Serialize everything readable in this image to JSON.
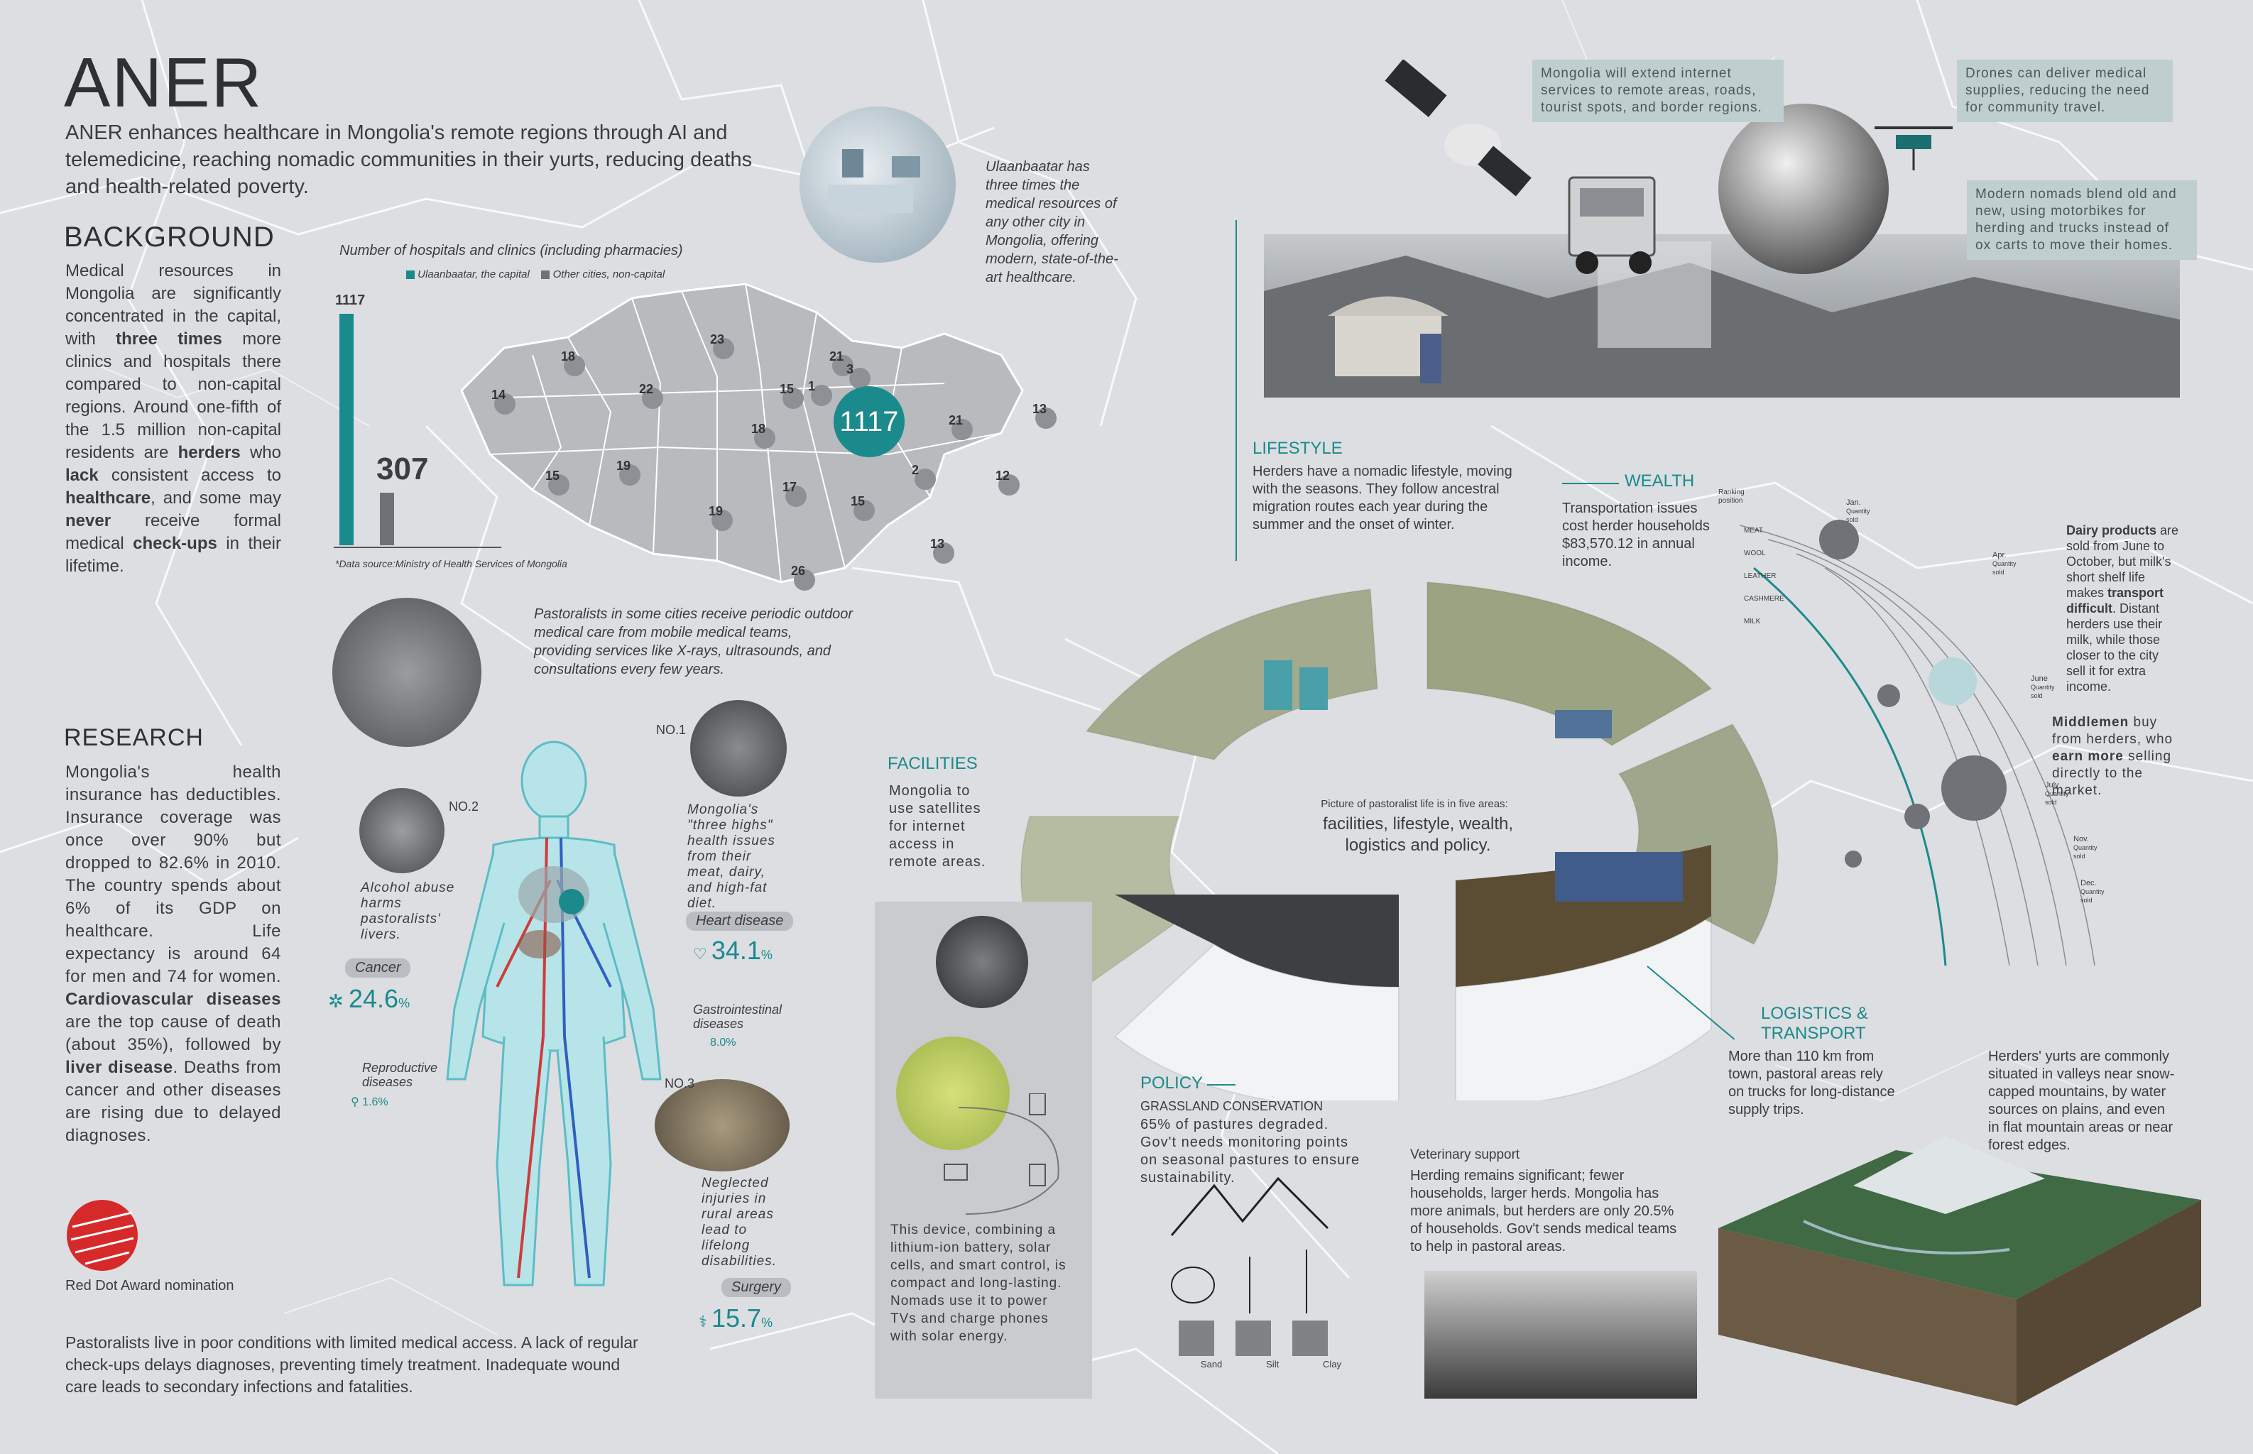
{
  "title": "ANER",
  "intro": "ANER enhances healthcare in Mongolia's remote regions through AI and telemedicine, reaching nomadic communities in their yurts, reducing deaths and health-related poverty.",
  "background": {
    "heading": "BACKGROUND",
    "text_html": "Medical resources in Mongolia are significantly concentrated in the capital, with <b>three times</b> more clinics and hospitals there compared to non-capital regions. Around one-fifth of the 1.5 million non-capital residents are <b>herders</b> who <b>lack</b> consistent access to <b>healthcare</b>, and some may <b>never</b> receive formal medical <b>check-ups</b> in their lifetime."
  },
  "bar_chart": {
    "caption": "Number of hospitals and clinics (including pharmacies)",
    "legend_capital": "Ulaanbaatar, the capital",
    "legend_other": "Other cities, non-capital",
    "capital_label": "1117",
    "other_label": "307",
    "source": "*Data source:Ministry of Health Services of Mongolia",
    "color_capital": "#1b8a8c",
    "color_other": "#6e7175"
  },
  "map_numbers": [
    "18",
    "23",
    "21",
    "3",
    "14",
    "22",
    "15",
    "1",
    "1117",
    "21",
    "13",
    "18",
    "15",
    "19",
    "17",
    "2",
    "12",
    "15",
    "19",
    "13",
    "26"
  ],
  "ulaanbaatar_note": "Ulaanbaatar has three times the medical resources of any other city in Mongolia, offering modern, state-of-the-art healthcare.",
  "mobile_note": "Pastoralists in some cities receive periodic outdoor medical care from mobile medical teams, providing services like X-rays, ultrasounds, and consultations every few years.",
  "research": {
    "heading": "RESEARCH",
    "text_html": "Mongolia's health insurance has deductibles. Insurance coverage was once over 90% but dropped to 82.6% in 2010. The country spends about 6% of its GDP on healthcare. Life expectancy is around 64 for men and 74 for women. <b>Cardiovascular diseases</b> are the top cause of death (about 35%), followed by <b>liver disease</b>. Deaths from cancer and other diseases are rising due to delayed diagnoses."
  },
  "body_figure": {
    "no1": "NO.1",
    "no1_text": "Mongolia's \"three highs\" health issues from their meat, dairy, and high-fat diet.",
    "no2": "NO.2",
    "no2_text": "Alcohol abuse harms pastoralists' livers.",
    "no3": "NO.3",
    "no3_text": "Neglected injuries in rural areas lead to lifelong disabilities.",
    "cancer_label": "Cancer",
    "cancer_pct": "24.6",
    "heart_label": "Heart disease",
    "heart_pct": "34.1",
    "gastro_label": "Gastrointestinal diseases",
    "gastro_pct": "8.0%",
    "repro_label": "Reproductive diseases",
    "repro_pct": "1.6%",
    "surgery_label": "Surgery",
    "surgery_pct": "15.7",
    "pct_sign": "%"
  },
  "award": "Red Dot Award nomination",
  "bottom_note": "Pastoralists live in poor conditions with limited medical access. A lack of regular check-ups delays diagnoses, preventing timely treatment. Inadequate wound care leads to secondary infections and fatalities.",
  "top_notes": {
    "internet": "Mongolia will extend internet services to remote areas, roads, tourist spots, and border regions.",
    "drones": "Drones can deliver medical supplies, reducing the need for community travel.",
    "nomads": "Modern nomads blend old and new, using motorbikes for herding and trucks instead of ox carts to move their homes."
  },
  "lifestyle": {
    "heading": "LIFESTYLE",
    "text": "Herders have a nomadic lifestyle, moving with the seasons. They follow ancestral migration routes each year during the summer and the onset of winter."
  },
  "wealth": {
    "heading": "WEALTH",
    "text": "Transportation issues cost herder households $83,570.12 in annual income."
  },
  "facilities": {
    "heading": "FACILITIES",
    "text": "Mongolia to use satellites for internet access in remote areas.",
    "device": "This device, combining a lithium-ion battery, solar cells, and smart control, is compact and long-lasting. Nomads use it to power TVs and charge phones with solar energy."
  },
  "ring": {
    "caption": "Picture of pastoralist life is in five areas:",
    "text": "facilities, lifestyle, wealth, logistics and policy."
  },
  "policy": {
    "heading": "POLICY",
    "sub": "GRASSLAND CONSERVATION",
    "text": "65% of pastures degraded. Gov't needs monitoring points on seasonal pastures to ensure sustainability.",
    "soil": [
      "Sand",
      "Silt",
      "Clay"
    ]
  },
  "vet": {
    "heading": "Veterinary support",
    "text": "Herding remains significant; fewer households, larger herds. Mongolia has more animals, but herders are only 20.5% of households. Gov't sends medical teams to help in pastoral areas."
  },
  "logistics": {
    "heading": "LOGISTICS & TRANSPORT",
    "text": "More than 110 km from town, pastoral areas rely on trucks for long-distance supply trips.",
    "yurts": "Herders' yurts are commonly situated in valleys near snow-capped mountains, by water sources on plains, and even in flat mountain areas or near forest edges."
  },
  "dairy": {
    "dairy_text_html": "<b>Dairy products</b> are sold from June to October, but milk's short shelf life makes <b>transport difficult</b>. Distant herders use their milk, while those closer to the city sell it for extra income.",
    "middlemen_html": "<b>Middlemen</b> buy from herders, who <b>earn more</b> selling directly to the market.",
    "ranking_label": "Ranking position",
    "products": [
      "MEAT",
      "WOOL",
      "LEATHER",
      "CASHMERE",
      "MILK"
    ],
    "months": [
      "Jan.",
      "Apr.",
      "June",
      "July",
      "Nov.",
      "Dec."
    ],
    "qty_label": "Quantity sold"
  }
}
